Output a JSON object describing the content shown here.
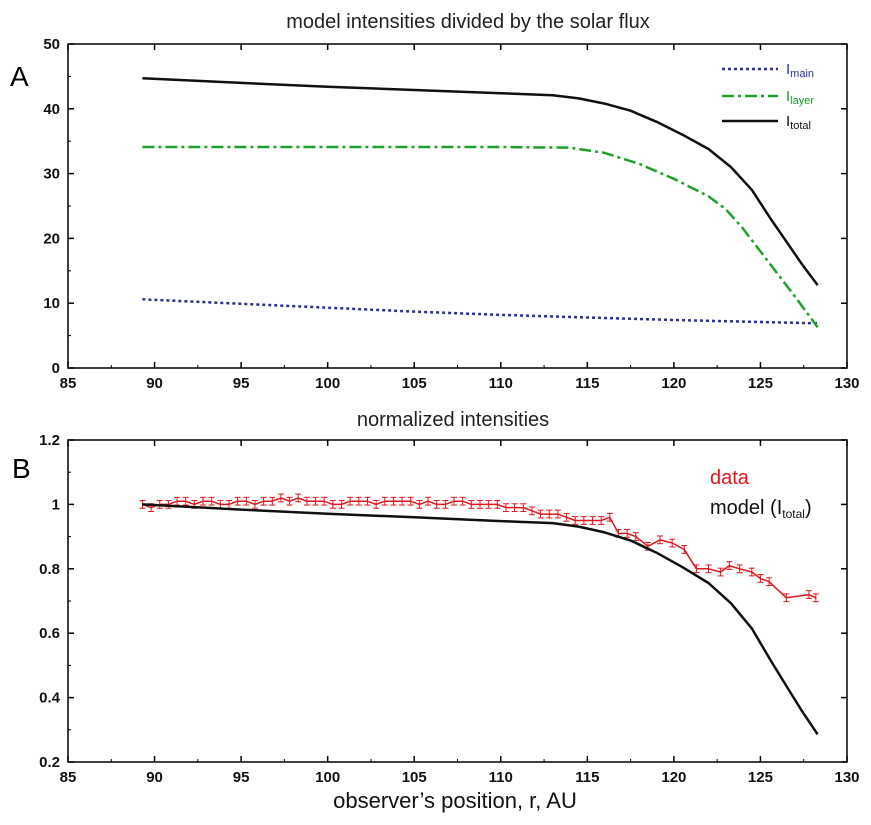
{
  "chart_data": [
    {
      "panel": "A",
      "type": "line",
      "title": "model intensities divided by the solar flux",
      "xlabel": "",
      "ylabel": "",
      "xlim": [
        85,
        130
      ],
      "ylim": [
        0,
        50
      ],
      "xticks": [
        85,
        90,
        95,
        100,
        105,
        110,
        115,
        120,
        125,
        130
      ],
      "yticks": [
        0,
        10,
        20,
        30,
        40,
        50
      ],
      "legend_position": "top-right",
      "series": [
        {
          "name": "main",
          "label_base": "I",
          "label_sub": "main",
          "color": "#2b2f9a",
          "style": "dotted",
          "x": [
            89.3,
            95,
            100,
            105,
            110,
            115,
            120,
            125,
            128.3
          ],
          "y": [
            10.6,
            9.9,
            9.3,
            8.7,
            8.2,
            7.8,
            7.4,
            7.1,
            6.9
          ]
        },
        {
          "name": "layer",
          "label_base": "I",
          "label_sub": "layer",
          "color": "#1ea02a",
          "style": "dashdot",
          "x": [
            89.3,
            100,
            110,
            114,
            116,
            118,
            120,
            122,
            123,
            124,
            125,
            126,
            127,
            128.3
          ],
          "y": [
            34.1,
            34.1,
            34.1,
            34.0,
            33.2,
            31.5,
            29.2,
            26.5,
            24.5,
            21.5,
            18.0,
            14.5,
            11.0,
            6.3
          ]
        },
        {
          "name": "total",
          "label_base": "I",
          "label_sub": "total",
          "color": "#111111",
          "style": "solid",
          "x": [
            89.3,
            95,
            100,
            105,
            110,
            113,
            114.5,
            116,
            117.5,
            119,
            120.5,
            122,
            123.3,
            124.5,
            125.6,
            126.5,
            127.4,
            128.3
          ],
          "y": [
            44.7,
            44.0,
            43.4,
            42.9,
            42.4,
            42.1,
            41.6,
            40.8,
            39.7,
            38.0,
            36.0,
            33.8,
            31.0,
            27.5,
            23.0,
            19.5,
            16.0,
            12.8
          ]
        }
      ]
    },
    {
      "panel": "B",
      "type": "line",
      "title": "normalized intensities",
      "xlabel": "observer’s position, r, AU",
      "ylabel": "",
      "xlim": [
        85,
        130
      ],
      "ylim": [
        0.2,
        1.2
      ],
      "xticks": [
        85,
        90,
        95,
        100,
        105,
        110,
        115,
        120,
        125,
        130
      ],
      "yticks": [
        0.2,
        0.4,
        0.6,
        0.8,
        1.0,
        1.2
      ],
      "ytick_labels": [
        "0.2",
        "0.4",
        "0.6",
        "0.8",
        "1",
        "1.2"
      ],
      "legend_position": "top-right",
      "series": [
        {
          "name": "data",
          "label": "data",
          "color": "#e0161b",
          "style": "solid-errorbars",
          "x": [
            89.3,
            89.8,
            90.3,
            90.8,
            91.3,
            91.8,
            92.3,
            92.8,
            93.3,
            93.8,
            94.3,
            94.8,
            95.3,
            95.8,
            96.3,
            96.8,
            97.3,
            97.8,
            98.3,
            98.8,
            99.3,
            99.8,
            100.3,
            100.8,
            101.3,
            101.8,
            102.3,
            102.8,
            103.3,
            103.8,
            104.3,
            104.8,
            105.3,
            105.8,
            106.3,
            106.8,
            107.3,
            107.8,
            108.3,
            108.8,
            109.3,
            109.8,
            110.3,
            110.8,
            111.3,
            111.8,
            112.3,
            112.8,
            113.3,
            113.8,
            114.3,
            114.8,
            115.3,
            115.8,
            116.3,
            116.8,
            117.3,
            117.8,
            118.5,
            119.2,
            119.9,
            120.6,
            121.3,
            122.0,
            122.7,
            123.2,
            123.8,
            124.5,
            125.0,
            125.5,
            126.5,
            127.8,
            128.2
          ],
          "y": [
            1.0,
            0.99,
            1.0,
            1.0,
            1.01,
            1.01,
            1.0,
            1.01,
            1.01,
            1.0,
            1.0,
            1.01,
            1.01,
            1.0,
            1.01,
            1.01,
            1.02,
            1.01,
            1.02,
            1.01,
            1.01,
            1.01,
            1.0,
            1.0,
            1.01,
            1.01,
            1.01,
            1.0,
            1.01,
            1.01,
            1.01,
            1.01,
            1.0,
            1.01,
            1.0,
            1.0,
            1.01,
            1.01,
            1.0,
            1.0,
            1.0,
            1.0,
            0.99,
            0.99,
            0.99,
            0.98,
            0.97,
            0.97,
            0.97,
            0.96,
            0.95,
            0.95,
            0.95,
            0.95,
            0.96,
            0.91,
            0.91,
            0.9,
            0.87,
            0.89,
            0.88,
            0.86,
            0.8,
            0.8,
            0.79,
            0.81,
            0.8,
            0.79,
            0.77,
            0.76,
            0.71,
            0.72,
            0.71
          ]
        },
        {
          "name": "model",
          "label": "model (I",
          "label_sub": "total",
          "label_end": ")",
          "color": "#111111",
          "style": "solid",
          "x": [
            89.3,
            95,
            100,
            105,
            110,
            113,
            114.5,
            116,
            117.5,
            119,
            120.5,
            122,
            123.3,
            124.5,
            125.6,
            126.5,
            127.4,
            128.3
          ],
          "y": [
            1.0,
            0.984,
            0.971,
            0.96,
            0.948,
            0.942,
            0.931,
            0.913,
            0.888,
            0.85,
            0.805,
            0.756,
            0.693,
            0.615,
            0.515,
            0.436,
            0.358,
            0.286
          ]
        }
      ]
    }
  ],
  "panel_letters": [
    "A",
    "B"
  ]
}
